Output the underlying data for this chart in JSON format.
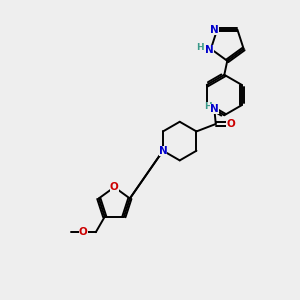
{
  "bg_color": "#eeeeee",
  "atom_colors": {
    "N": "#0000cc",
    "O": "#cc0000",
    "C": "#000000",
    "H": "#3a9a8a"
  },
  "bond_color": "#000000",
  "figsize": [
    3.0,
    3.0
  ],
  "dpi": 100
}
